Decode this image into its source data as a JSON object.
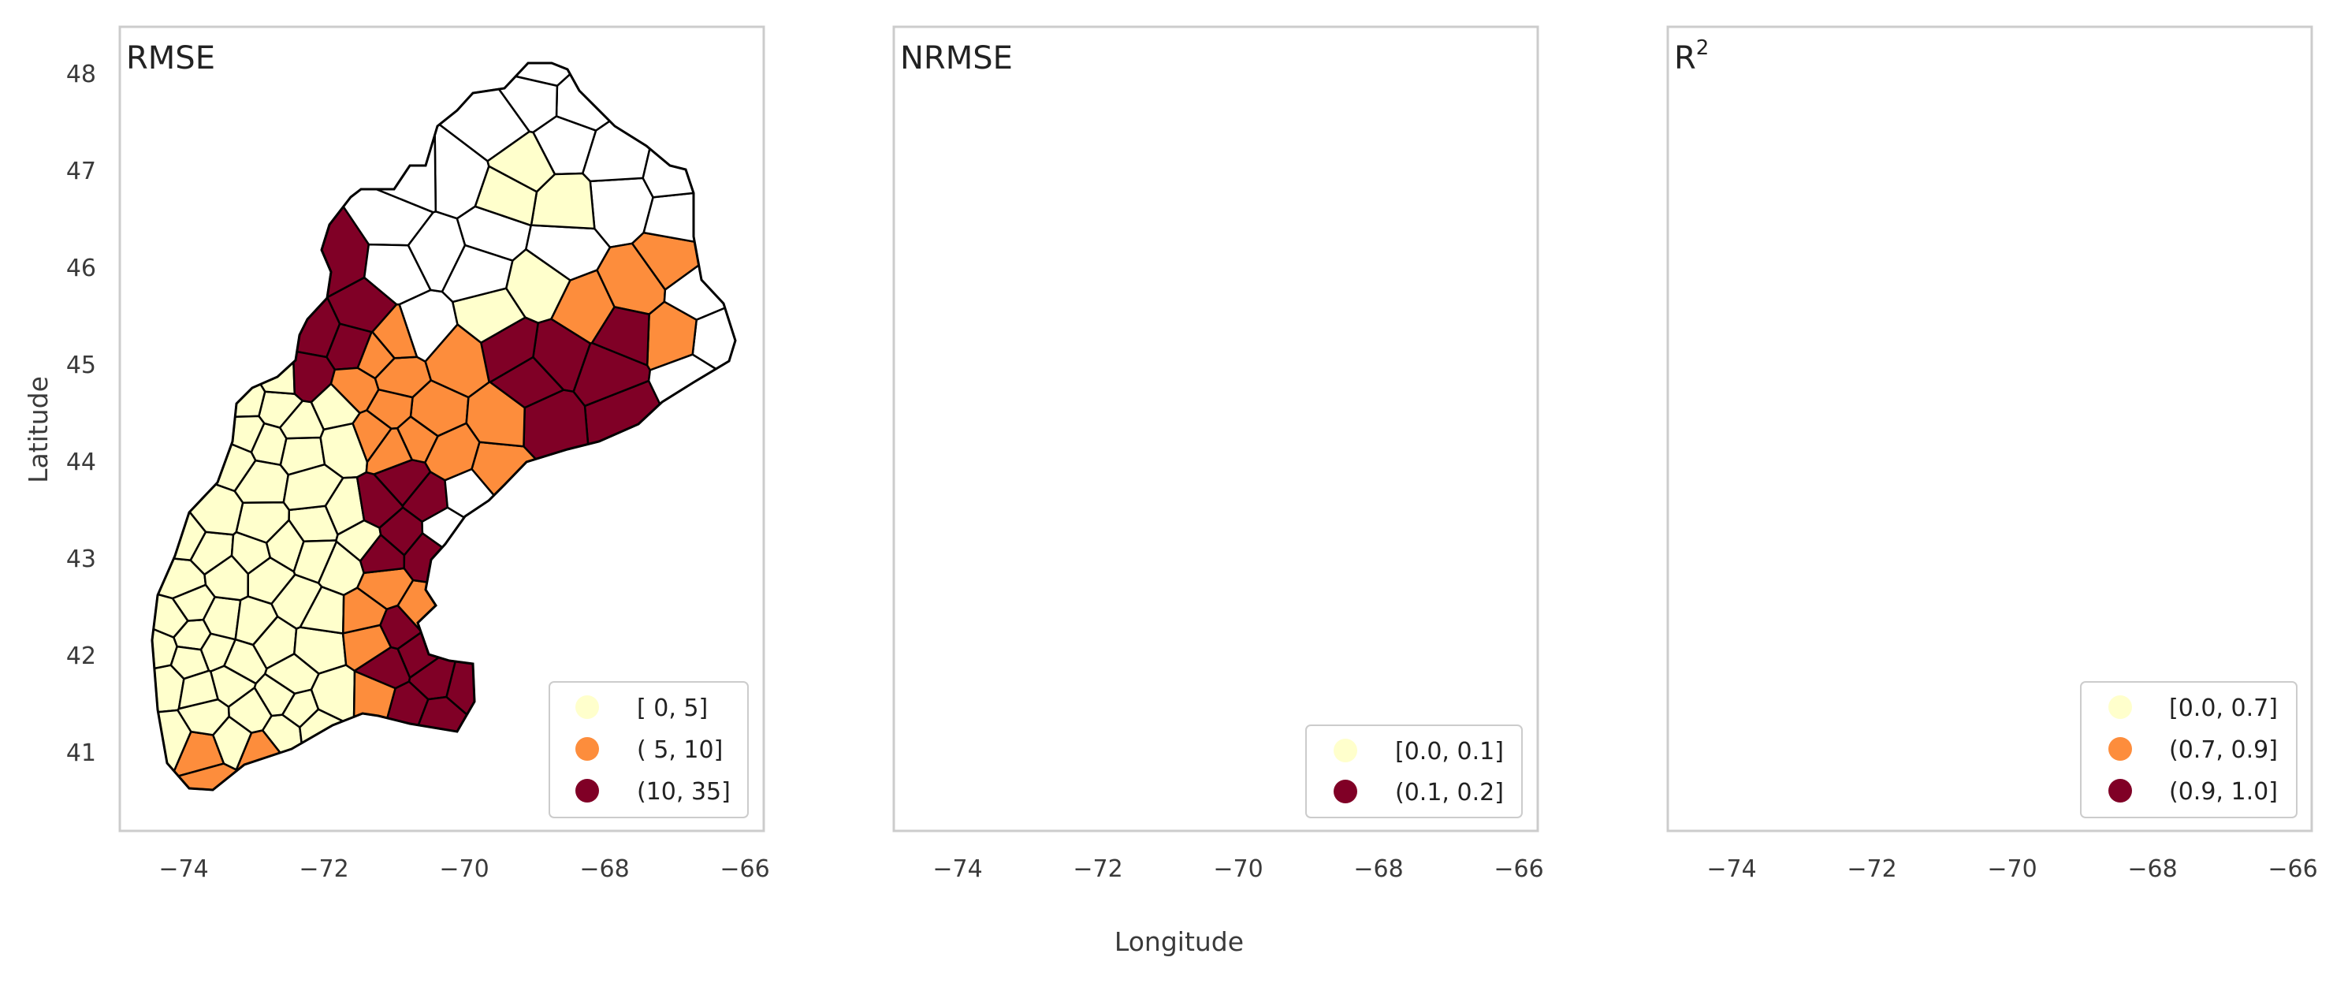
{
  "axes": {
    "xlabel": "Longitude",
    "ylabel": "Latitude",
    "x_ticks": [
      "−74",
      "−72",
      "−70",
      "−68",
      "−66"
    ],
    "y_ticks": [
      "48",
      "47",
      "46",
      "45",
      "44",
      "43",
      "42",
      "41"
    ]
  },
  "colors": {
    "low": "#ffffcc",
    "mid": "#fd8d3c",
    "high": "#800026",
    "none": "#ffffff",
    "stroke": "#000000"
  },
  "panels": [
    {
      "title": "RMSE",
      "legend": [
        {
          "label": "[ 0,  5]",
          "color": "#ffffcc"
        },
        {
          "label": "( 5, 10]",
          "color": "#fd8d3c"
        },
        {
          "label": "(10, 35]",
          "color": "#800026"
        }
      ]
    },
    {
      "title": "NRMSE",
      "legend": [
        {
          "label": "[0.0, 0.1]",
          "color": "#ffffcc"
        },
        {
          "label": "(0.1, 0.2]",
          "color": "#800026"
        }
      ]
    },
    {
      "title": "R",
      "title_sup": "2",
      "legend": [
        {
          "label": "[0.0, 0.7]",
          "color": "#ffffcc"
        },
        {
          "label": "(0.7, 0.9]",
          "color": "#fd8d3c"
        },
        {
          "label": "(0.9, 1.0]",
          "color": "#800026"
        }
      ]
    }
  ],
  "chart_data": {
    "type": "choropleth",
    "xlim": [
      -75,
      -66
    ],
    "ylim": [
      40.2,
      48.4
    ],
    "grid": false,
    "legend_position": "bottom-right",
    "panels": [
      {
        "metric": "RMSE",
        "classes": [
          "[ 0,  5]",
          "( 5, 10]",
          "(10, 35]"
        ]
      },
      {
        "metric": "NRMSE",
        "classes": [
          "[0.0, 0.1]",
          "(0.1, 0.2]"
        ]
      },
      {
        "metric": "R²",
        "classes": [
          "[0.0, 0.7]",
          "(0.7, 0.9]",
          "(0.9, 1.0]"
        ]
      }
    ]
  }
}
